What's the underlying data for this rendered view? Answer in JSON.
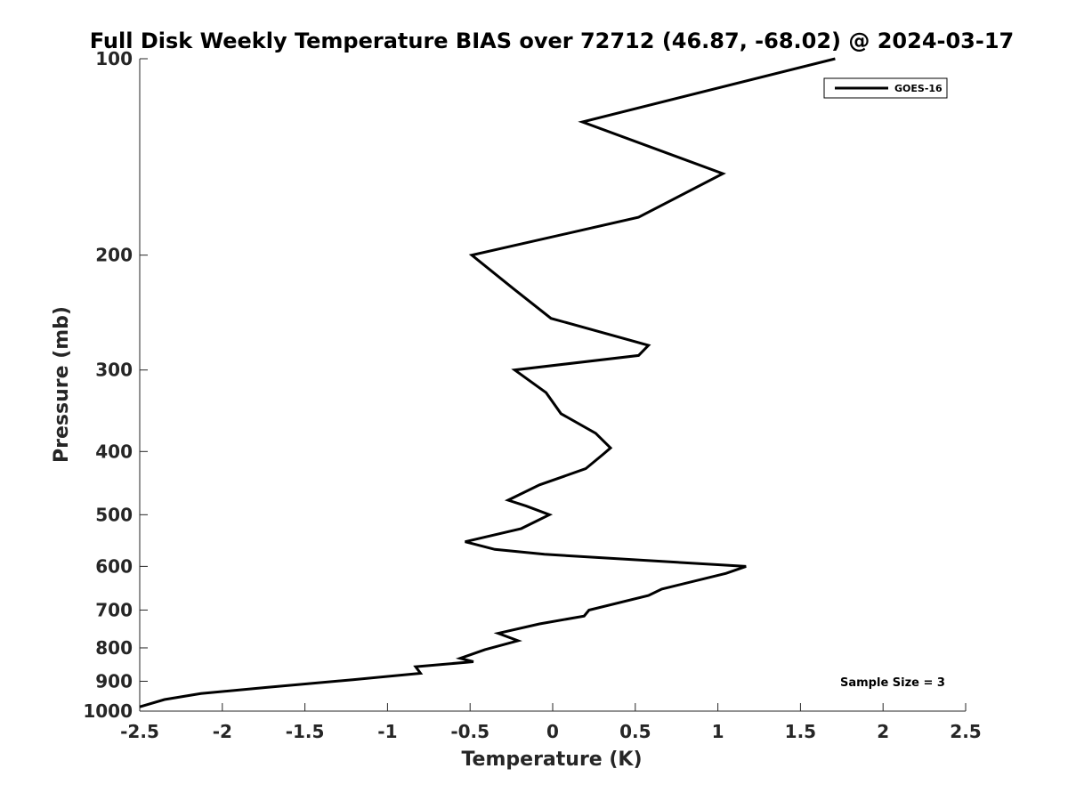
{
  "chart_data": {
    "type": "line",
    "title": "Full Disk Weekly Temperature BIAS over 72712 (46.87, -68.02) @ 2024-03-17",
    "xlabel": "Temperature (K)",
    "ylabel": "Pressure (mb)",
    "xlim": [
      -2.5,
      2.5
    ],
    "ylim": [
      100,
      1000
    ],
    "y_scale": "log",
    "y_reversed": true,
    "x_ticks": [
      "-2.5",
      "-2",
      "-1.5",
      "-1",
      "-0.5",
      "0",
      "0.5",
      "1",
      "1.5",
      "2",
      "2.5"
    ],
    "y_ticks": [
      "100",
      "200",
      "300",
      "400",
      "500",
      "600",
      "700",
      "800",
      "900",
      "1000"
    ],
    "grid": false,
    "legend_position": "top-right",
    "series_color": "#000000",
    "annotation": "Sample Size = 3",
    "series": [
      {
        "name": "GOES-16",
        "points": [
          {
            "x": 1.71,
            "p": 100
          },
          {
            "x": 0.18,
            "p": 125
          },
          {
            "x": 1.03,
            "p": 150
          },
          {
            "x": 0.52,
            "p": 175
          },
          {
            "x": -0.49,
            "p": 200
          },
          {
            "x": -0.24,
            "p": 225
          },
          {
            "x": -0.01,
            "p": 250
          },
          {
            "x": 0.58,
            "p": 275
          },
          {
            "x": 0.52,
            "p": 285
          },
          {
            "x": -0.23,
            "p": 300
          },
          {
            "x": -0.04,
            "p": 325
          },
          {
            "x": 0.05,
            "p": 350
          },
          {
            "x": 0.26,
            "p": 375
          },
          {
            "x": 0.35,
            "p": 395
          },
          {
            "x": 0.3,
            "p": 405
          },
          {
            "x": 0.2,
            "p": 425
          },
          {
            "x": -0.08,
            "p": 450
          },
          {
            "x": -0.27,
            "p": 475
          },
          {
            "x": -0.16,
            "p": 485
          },
          {
            "x": -0.02,
            "p": 500
          },
          {
            "x": -0.19,
            "p": 525
          },
          {
            "x": -0.53,
            "p": 550
          },
          {
            "x": -0.35,
            "p": 565
          },
          {
            "x": -0.05,
            "p": 575
          },
          {
            "x": 1.17,
            "p": 600
          },
          {
            "x": 1.05,
            "p": 615
          },
          {
            "x": 0.66,
            "p": 650
          },
          {
            "x": 0.58,
            "p": 665
          },
          {
            "x": 0.22,
            "p": 700
          },
          {
            "x": 0.19,
            "p": 715
          },
          {
            "x": -0.08,
            "p": 735
          },
          {
            "x": -0.33,
            "p": 760
          },
          {
            "x": -0.21,
            "p": 780
          },
          {
            "x": -0.41,
            "p": 805
          },
          {
            "x": -0.56,
            "p": 830
          },
          {
            "x": -0.48,
            "p": 840
          },
          {
            "x": -0.83,
            "p": 855
          },
          {
            "x": -0.8,
            "p": 875
          },
          {
            "x": -1.21,
            "p": 895
          },
          {
            "x": -1.74,
            "p": 920
          },
          {
            "x": -2.13,
            "p": 940
          },
          {
            "x": -2.35,
            "p": 960
          },
          {
            "x": -2.5,
            "p": 985
          }
        ]
      }
    ]
  }
}
